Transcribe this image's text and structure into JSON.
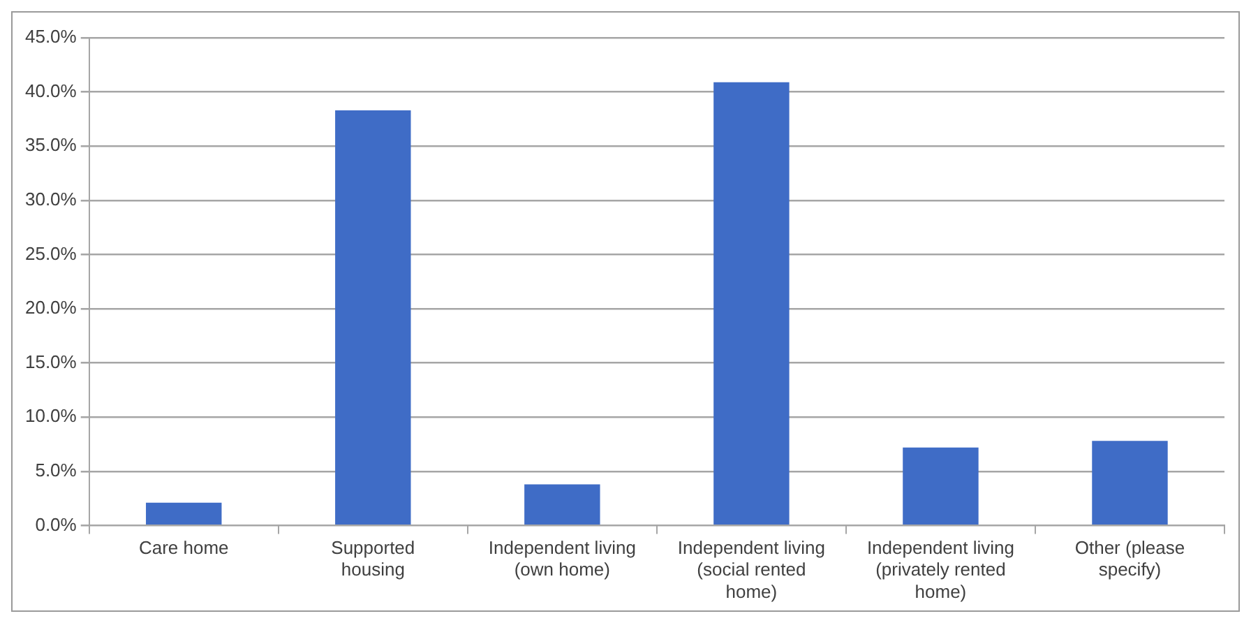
{
  "chart_data": {
    "type": "bar",
    "categories": [
      "Care home",
      "Supported housing",
      "Independent living (own home)",
      "Independent living (social rented home)",
      "Independent living (privately rented home)",
      "Other (please specify)"
    ],
    "values": [
      2.1,
      38.3,
      3.8,
      40.9,
      7.2,
      7.8
    ],
    "color": "#3f6cc6",
    "ylim": [
      0,
      45
    ],
    "yticks": [
      {
        "value": 0,
        "label": "0.0%"
      },
      {
        "value": 5,
        "label": "5.0%"
      },
      {
        "value": 10,
        "label": "10.0%"
      },
      {
        "value": 15,
        "label": "15.0%"
      },
      {
        "value": 20,
        "label": "20.0%"
      },
      {
        "value": 25,
        "label": "25.0%"
      },
      {
        "value": 30,
        "label": "30.0%"
      },
      {
        "value": 35,
        "label": "35.0%"
      },
      {
        "value": 40,
        "label": "40.0%"
      },
      {
        "value": 45,
        "label": "45.0%"
      }
    ],
    "grid": "y",
    "legend": false
  }
}
